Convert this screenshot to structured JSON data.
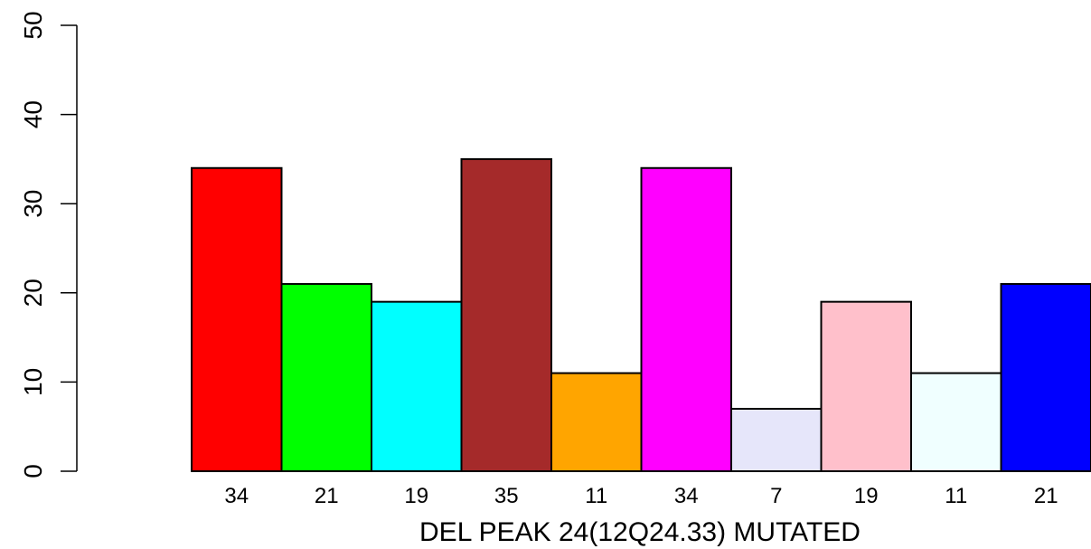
{
  "chart_data": {
    "type": "bar",
    "categories": [
      "34",
      "21",
      "19",
      "35",
      "11",
      "34",
      "7",
      "19",
      "11",
      "21"
    ],
    "values": [
      34,
      21,
      19,
      35,
      11,
      34,
      7,
      19,
      11,
      21
    ],
    "colors": [
      "#ff0000",
      "#00ff00",
      "#00ffff",
      "#a52a2a",
      "#ffa500",
      "#ff00ff",
      "#e6e6fa",
      "#ffc0cb",
      "#f0ffff",
      "#0000ff"
    ],
    "title": "",
    "xlabel": "DEL PEAK 24(12Q24.33) MUTATED",
    "ylabel": "",
    "ylim": [
      0,
      50
    ],
    "yticks": [
      0,
      10,
      20,
      30,
      40,
      50
    ],
    "grid": false,
    "legend": "none"
  }
}
